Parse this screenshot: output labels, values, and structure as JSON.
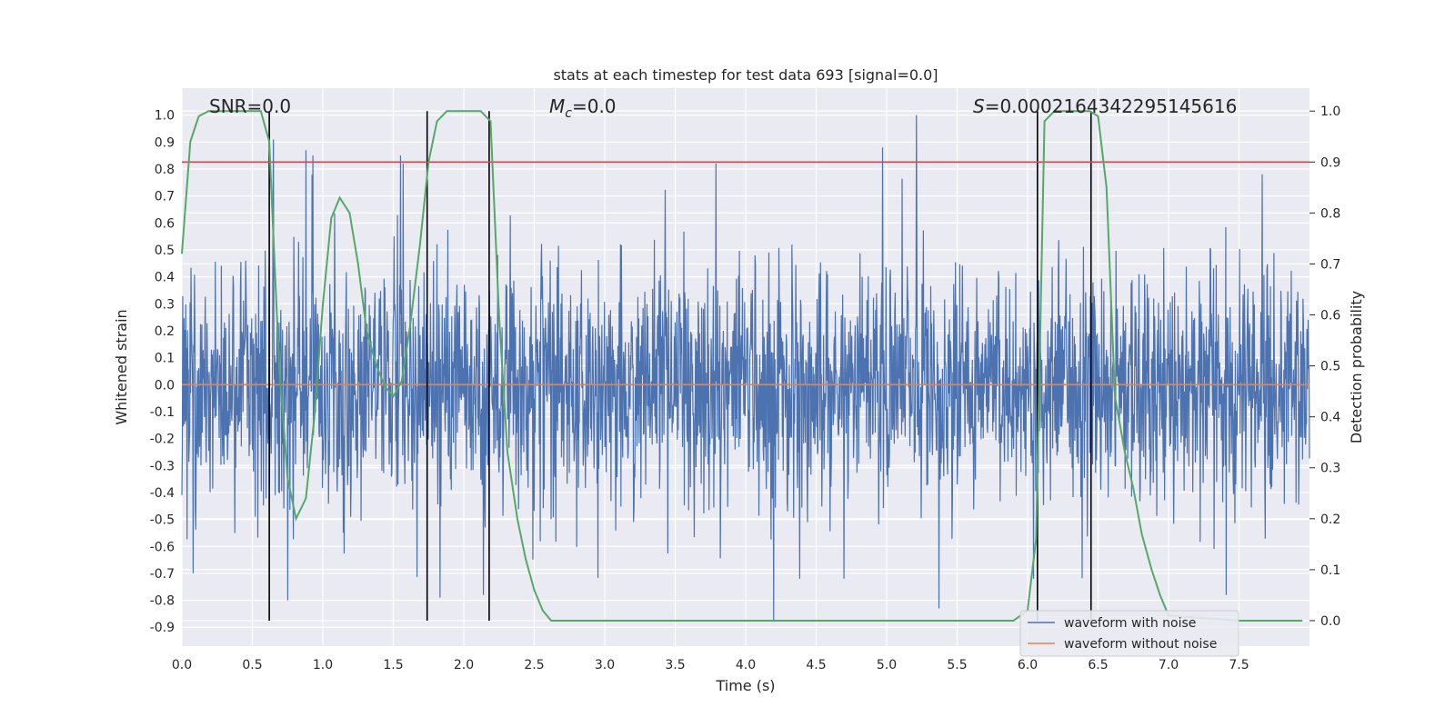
{
  "chart_data": {
    "type": "line",
    "title": "stats at each timestep for test data 693 [signal=0.0]",
    "xlabel": "Time (s)",
    "ylabel": "Whitened strain",
    "y2label": "Detection probability",
    "xlim": [
      0.0,
      8.0
    ],
    "ylim": [
      -0.97,
      1.1
    ],
    "y2lim": [
      -0.05,
      1.045
    ],
    "xticks": [
      "0.0",
      "0.5",
      "1.0",
      "1.5",
      "2.0",
      "2.5",
      "3.0",
      "3.5",
      "4.0",
      "4.5",
      "5.0",
      "5.5",
      "6.0",
      "6.5",
      "7.0",
      "7.5"
    ],
    "yticks": [
      "1.0",
      "0.9",
      "0.8",
      "0.7",
      "0.6",
      "0.5",
      "0.4",
      "0.3",
      "0.2",
      "0.1",
      "0.0",
      "-0.1",
      "-0.2",
      "-0.3",
      "-0.4",
      "-0.5",
      "-0.6",
      "-0.7",
      "-0.8",
      "-0.9"
    ],
    "y2ticks": [
      "1.0",
      "0.9",
      "0.8",
      "0.7",
      "0.6",
      "0.5",
      "0.4",
      "0.3",
      "0.2",
      "0.1",
      "0.0"
    ],
    "grid": true,
    "legend_position": "lower-right",
    "annotations": {
      "snr": "SNR=0.0",
      "mc_symbol": "M",
      "mc_sub": "c",
      "mc_value": "=0.0",
      "s_symbol": "S",
      "s_value": "=0.0002164342295145616"
    },
    "threshold": {
      "y2": 0.9,
      "color": "#c44e52"
    },
    "vertical_lines_x": [
      0.62,
      1.74,
      2.18,
      6.07,
      6.45
    ],
    "series": [
      {
        "name": "waveform with noise",
        "color": "#4c72b0",
        "axis": "left",
        "envelope": "noise",
        "spikes": [
          {
            "x": 0.65,
            "y": 0.91
          },
          {
            "x": 0.88,
            "y": 0.87
          },
          {
            "x": 0.93,
            "y": 0.85
          },
          {
            "x": 1.55,
            "y": 0.85
          },
          {
            "x": 1.57,
            "y": 0.82
          },
          {
            "x": 3.79,
            "y": 0.82
          },
          {
            "x": 4.97,
            "y": 0.88
          },
          {
            "x": 5.21,
            "y": 1.0
          },
          {
            "x": 4.2,
            "y": -0.88
          },
          {
            "x": 5.37,
            "y": -0.83
          },
          {
            "x": 0.75,
            "y": -0.8
          },
          {
            "x": 1.83,
            "y": -0.79
          },
          {
            "x": 2.14,
            "y": -0.78
          },
          {
            "x": 0.08,
            "y": -0.7
          },
          {
            "x": 7.41,
            "y": -0.78
          }
        ]
      },
      {
        "name": "waveform without noise",
        "color": "#dd8452",
        "axis": "left",
        "x": [
          0.0,
          8.0
        ],
        "y": [
          0.0,
          0.0
        ]
      },
      {
        "name": "detection probability",
        "color": "#55a868",
        "axis": "right",
        "x": [
          0.0,
          0.06,
          0.12,
          0.19,
          0.25,
          0.31,
          0.38,
          0.44,
          0.5,
          0.56,
          0.62,
          0.69,
          0.75,
          0.81,
          0.88,
          0.94,
          1.0,
          1.06,
          1.12,
          1.19,
          1.25,
          1.31,
          1.38,
          1.44,
          1.5,
          1.56,
          1.62,
          1.69,
          1.75,
          1.81,
          1.88,
          1.94,
          2.0,
          2.06,
          2.12,
          2.19,
          2.25,
          2.31,
          2.38,
          2.44,
          2.5,
          2.56,
          2.62,
          2.69,
          3.0,
          3.2,
          3.5,
          4.0,
          5.0,
          5.5,
          5.9,
          6.0,
          6.06,
          6.12,
          6.19,
          6.25,
          6.31,
          6.38,
          6.44,
          6.5,
          6.56,
          6.62,
          6.69,
          6.75,
          6.81,
          6.88,
          6.94,
          7.0,
          7.5,
          7.95
        ],
        "y": [
          0.72,
          0.94,
          0.99,
          1.0,
          1.0,
          1.0,
          1.0,
          1.0,
          1.0,
          1.0,
          0.94,
          0.5,
          0.28,
          0.2,
          0.24,
          0.4,
          0.62,
          0.79,
          0.83,
          0.8,
          0.7,
          0.57,
          0.5,
          0.46,
          0.44,
          0.47,
          0.58,
          0.74,
          0.9,
          0.98,
          1.0,
          1.0,
          1.0,
          1.0,
          1.0,
          0.98,
          0.6,
          0.33,
          0.2,
          0.12,
          0.06,
          0.02,
          0.0,
          0.0,
          0.0,
          0.0,
          0.0,
          0.0,
          0.0,
          0.0,
          0.0,
          0.02,
          0.16,
          0.98,
          1.0,
          1.0,
          1.0,
          1.0,
          1.0,
          0.99,
          0.85,
          0.44,
          0.33,
          0.26,
          0.17,
          0.1,
          0.05,
          0.01,
          0.0,
          0.0
        ]
      }
    ]
  }
}
